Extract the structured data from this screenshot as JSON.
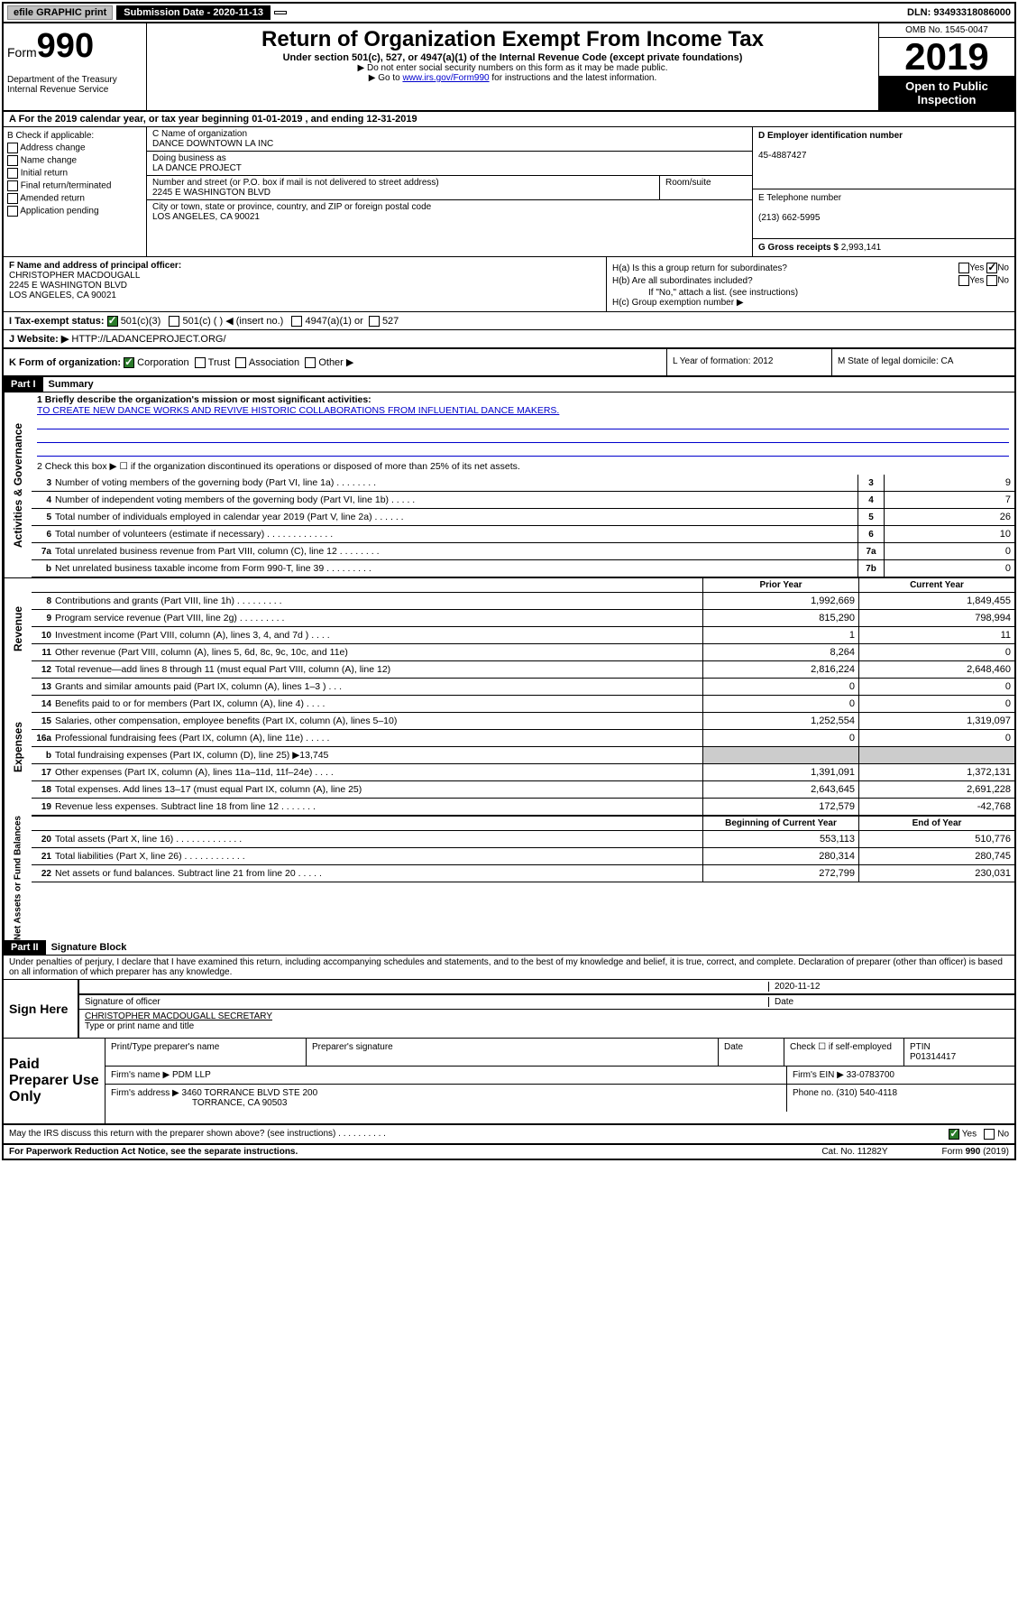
{
  "topbar": {
    "efile": "efile GRAPHIC print",
    "subdate_label": "Submission Date - 2020-11-13",
    "dln": "DLN: 93493318086000"
  },
  "header": {
    "form_label": "Form",
    "form_num": "990",
    "dept": "Department of the Treasury Internal Revenue Service",
    "title": "Return of Organization Exempt From Income Tax",
    "sub": "Under section 501(c), 527, or 4947(a)(1) of the Internal Revenue Code (except private foundations)",
    "note1": "▶ Do not enter social security numbers on this form as it may be made public.",
    "note2_pre": "▶ Go to ",
    "note2_link": "www.irs.gov/Form990",
    "note2_post": " for instructions and the latest information.",
    "omb": "OMB No. 1545-0047",
    "year": "2019",
    "open": "Open to Public Inspection"
  },
  "row_a": "A For the 2019 calendar year, or tax year beginning 01-01-2019     , and ending 12-31-2019",
  "section_b": {
    "label": "B Check if applicable:",
    "items": [
      "Address change",
      "Name change",
      "Initial return",
      "Final return/terminated",
      "Amended return",
      "Application pending"
    ]
  },
  "section_c": {
    "name_label": "C Name of organization",
    "name": "DANCE DOWNTOWN LA INC",
    "dba_label": "Doing business as",
    "dba": "LA DANCE PROJECT",
    "street_label": "Number and street (or P.O. box if mail is not delivered to street address)",
    "street": "2245 E WASHINGTON BLVD",
    "room_label": "Room/suite",
    "city_label": "City or town, state or province, country, and ZIP or foreign postal code",
    "city": "LOS ANGELES, CA   90021"
  },
  "section_d": {
    "ein_label": "D Employer identification number",
    "ein": "45-4887427",
    "tel_label": "E Telephone number",
    "tel": "(213) 662-5995",
    "gross_label": "G Gross receipts $",
    "gross": "2,993,141"
  },
  "section_f": {
    "label": "F Name and address of principal officer:",
    "name": "CHRISTOPHER MACDOUGALL",
    "street": "2245 E WASHINGTON BLVD",
    "city": "LOS ANGELES, CA   90021"
  },
  "section_h": {
    "ha": "H(a)  Is this a group return for subordinates?",
    "hb": "H(b)  Are all subordinates included?",
    "hb_note": "If \"No,\" attach a list. (see instructions)",
    "hc": "H(c)  Group exemption number ▶"
  },
  "section_i": {
    "label": "I    Tax-exempt status:",
    "opts": [
      "501(c)(3)",
      "501(c) (  ) ◀ (insert no.)",
      "4947(a)(1) or",
      "527"
    ]
  },
  "section_j": {
    "label": "J    Website: ▶",
    "url": "HTTP://LADANCEPROJECT.ORG/"
  },
  "section_k": {
    "label": "K Form of organization:",
    "opts": [
      "Corporation",
      "Trust",
      "Association",
      "Other ▶"
    ]
  },
  "section_l": "L Year of formation: 2012",
  "section_m": "M State of legal domicile: CA",
  "part1": {
    "header": "Part I",
    "title": "Summary",
    "line1_label": "1   Briefly describe the organization's mission or most significant activities:",
    "line1_text": "TO CREATE NEW DANCE WORKS AND REVIVE HISTORIC COLLABORATIONS FROM INFLUENTIAL DANCE MAKERS.",
    "line2": "2   Check this box ▶ ☐  if the organization discontinued its operations or disposed of more than 25% of its net assets.",
    "lines_single": [
      {
        "n": "3",
        "t": "Number of voting members of the governing body (Part VI, line 1a)  .  .  .  .  .  .  .  .",
        "b": "3",
        "v": "9"
      },
      {
        "n": "4",
        "t": "Number of independent voting members of the governing body (Part VI, line 1b)  .  .  .  .  .",
        "b": "4",
        "v": "7"
      },
      {
        "n": "5",
        "t": "Total number of individuals employed in calendar year 2019 (Part V, line 2a)  .  .  .  .  .  .",
        "b": "5",
        "v": "26"
      },
      {
        "n": "6",
        "t": "Total number of volunteers (estimate if necessary)  .  .  .  .  .  .  .  .  .  .  .  .  .",
        "b": "6",
        "v": "10"
      },
      {
        "n": "7a",
        "t": "Total unrelated business revenue from Part VIII, column (C), line 12  .  .  .  .  .  .  .  .",
        "b": "7a",
        "v": "0"
      },
      {
        "n": "b",
        "t": "Net unrelated business taxable income from Form 990-T, line 39  .  .  .  .  .  .  .  .  .",
        "b": "7b",
        "v": "0"
      }
    ],
    "col_prior": "Prior Year",
    "col_current": "Current Year",
    "revenue": [
      {
        "n": "8",
        "t": "Contributions and grants (Part VIII, line 1h)  .  .  .  .  .  .  .  .  .",
        "p": "1,992,669",
        "c": "1,849,455"
      },
      {
        "n": "9",
        "t": "Program service revenue (Part VIII, line 2g)  .  .  .  .  .  .  .  .  .",
        "p": "815,290",
        "c": "798,994"
      },
      {
        "n": "10",
        "t": "Investment income (Part VIII, column (A), lines 3, 4, and 7d )  .  .  .  .",
        "p": "1",
        "c": "11"
      },
      {
        "n": "11",
        "t": "Other revenue (Part VIII, column (A), lines 5, 6d, 8c, 9c, 10c, and 11e)",
        "p": "8,264",
        "c": "0"
      },
      {
        "n": "12",
        "t": "Total revenue—add lines 8 through 11 (must equal Part VIII, column (A), line 12)",
        "p": "2,816,224",
        "c": "2,648,460"
      }
    ],
    "expenses": [
      {
        "n": "13",
        "t": "Grants and similar amounts paid (Part IX, column (A), lines 1–3 )  .  .  .",
        "p": "0",
        "c": "0"
      },
      {
        "n": "14",
        "t": "Benefits paid to or for members (Part IX, column (A), line 4)  .  .  .  .",
        "p": "0",
        "c": "0"
      },
      {
        "n": "15",
        "t": "Salaries, other compensation, employee benefits (Part IX, column (A), lines 5–10)",
        "p": "1,252,554",
        "c": "1,319,097"
      },
      {
        "n": "16a",
        "t": "Professional fundraising fees (Part IX, column (A), line 11e)  .  .  .  .  .",
        "p": "0",
        "c": "0"
      },
      {
        "n": "b",
        "t": "Total fundraising expenses (Part IX, column (D), line 25) ▶13,745",
        "p": "",
        "c": "",
        "gray": true
      },
      {
        "n": "17",
        "t": "Other expenses (Part IX, column (A), lines 11a–11d, 11f–24e)  .  .  .  .",
        "p": "1,391,091",
        "c": "1,372,131"
      },
      {
        "n": "18",
        "t": "Total expenses. Add lines 13–17 (must equal Part IX, column (A), line 25)",
        "p": "2,643,645",
        "c": "2,691,228"
      },
      {
        "n": "19",
        "t": "Revenue less expenses. Subtract line 18 from line 12  .  .  .  .  .  .  .",
        "p": "172,579",
        "c": "-42,768"
      }
    ],
    "col_begin": "Beginning of Current Year",
    "col_end": "End of Year",
    "netassets": [
      {
        "n": "20",
        "t": "Total assets (Part X, line 16)  .  .  .  .  .  .  .  .  .  .  .  .  .",
        "p": "553,113",
        "c": "510,776"
      },
      {
        "n": "21",
        "t": "Total liabilities (Part X, line 26)  .  .  .  .  .  .  .  .  .  .  .  .",
        "p": "280,314",
        "c": "280,745"
      },
      {
        "n": "22",
        "t": "Net assets or fund balances. Subtract line 21 from line 20  .  .  .  .  .",
        "p": "272,799",
        "c": "230,031"
      }
    ]
  },
  "part2": {
    "header": "Part II",
    "title": "Signature Block",
    "declaration": "Under penalties of perjury, I declare that I have examined this return, including accompanying schedules and statements, and to the best of my knowledge and belief, it is true, correct, and complete. Declaration of preparer (other than officer) is based on all information of which preparer has any knowledge.",
    "sign_here": "Sign Here",
    "sig_date": "2020-11-12",
    "sig_officer_label": "Signature of officer",
    "date_label": "Date",
    "officer_name": "CHRISTOPHER MACDOUGALL  SECRETARY",
    "officer_label": "Type or print name and title",
    "paid_label": "Paid Preparer Use Only",
    "prep_name_label": "Print/Type preparer's name",
    "prep_sig_label": "Preparer's signature",
    "prep_date_label": "Date",
    "check_label": "Check ☐ if self-employed",
    "ptin_label": "PTIN",
    "ptin": "P01314417",
    "firm_name_label": "Firm's name   ▶",
    "firm_name": "PDM LLP",
    "firm_ein_label": "Firm's EIN ▶",
    "firm_ein": "33-0783700",
    "firm_addr_label": "Firm's address ▶",
    "firm_addr": "3460 TORRANCE BLVD STE 200",
    "firm_city": "TORRANCE, CA   90503",
    "phone_label": "Phone no.",
    "phone": "(310) 540-4118",
    "discuss": "May the IRS discuss this return with the preparer shown above? (see instructions)  .  .  .  .  .  .  .  .  .  .",
    "paperwork": "For Paperwork Reduction Act Notice, see the separate instructions.",
    "cat": "Cat. No. 11282Y",
    "form_foot": "Form 990 (2019)"
  },
  "vert_labels": {
    "gov": "Activities & Governance",
    "rev": "Revenue",
    "exp": "Expenses",
    "net": "Net Assets or Fund Balances"
  }
}
